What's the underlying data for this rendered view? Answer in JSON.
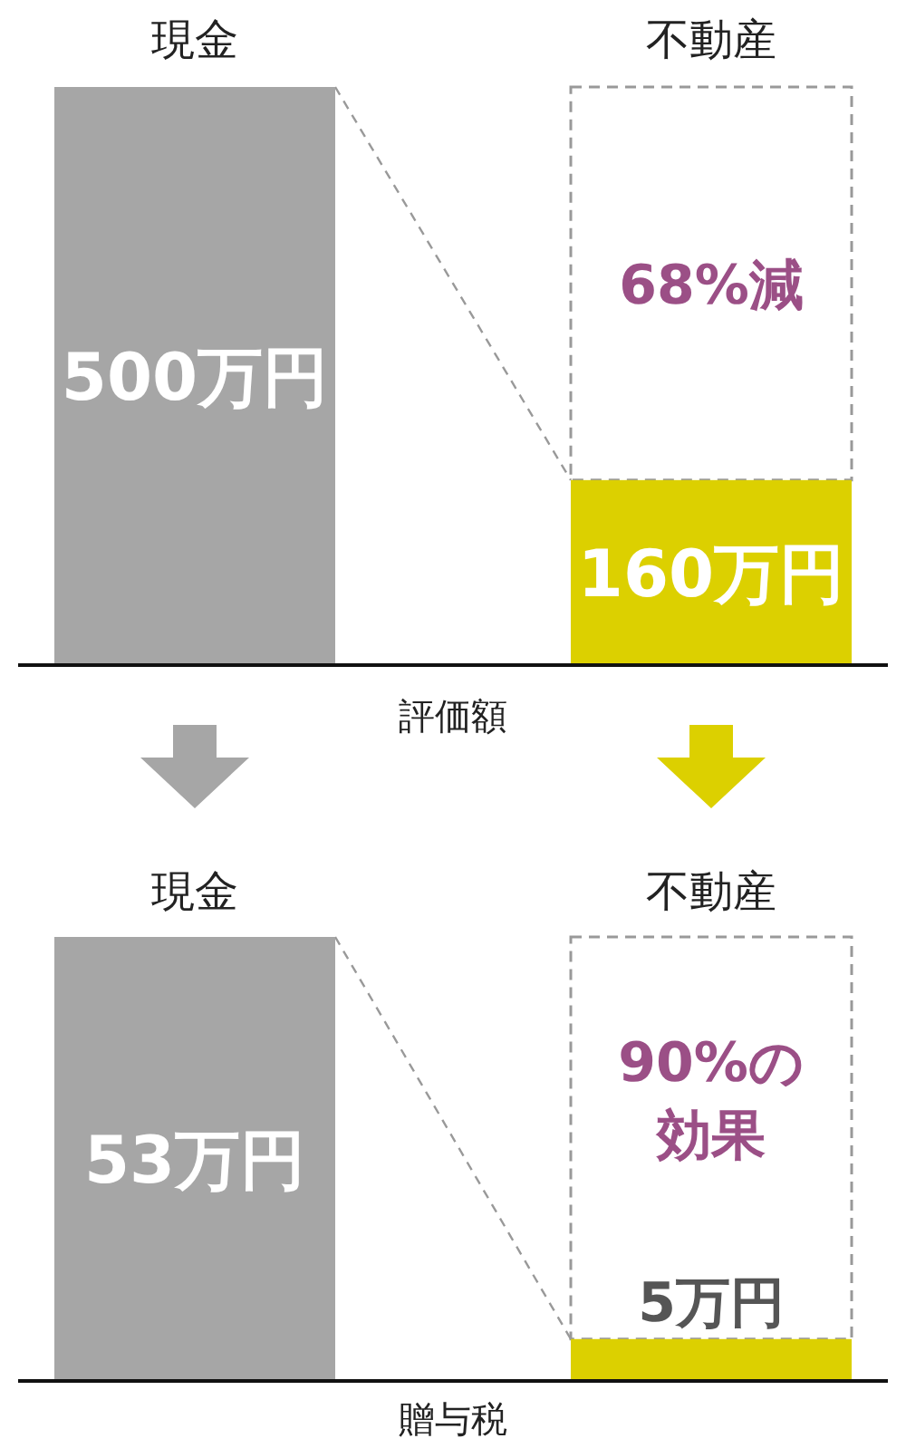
{
  "chart_data": [
    {
      "type": "bar",
      "categories": [
        "現金",
        "不動産"
      ],
      "values": [
        500,
        160
      ],
      "colors": [
        "#a6a6a6",
        "#dcd000"
      ],
      "value_labels": [
        "500万円",
        "160万円"
      ],
      "xlabel": "評価額",
      "annotations": [
        "68%減"
      ]
    },
    {
      "type": "bar",
      "categories": [
        "現金",
        "不動産"
      ],
      "values": [
        53,
        5
      ],
      "colors": [
        "#a6a6a6",
        "#dcd000"
      ],
      "value_labels": [
        "53万円",
        "5万円"
      ],
      "xlabel": "贈与税",
      "annotations": [
        "90%の効果"
      ]
    }
  ]
}
